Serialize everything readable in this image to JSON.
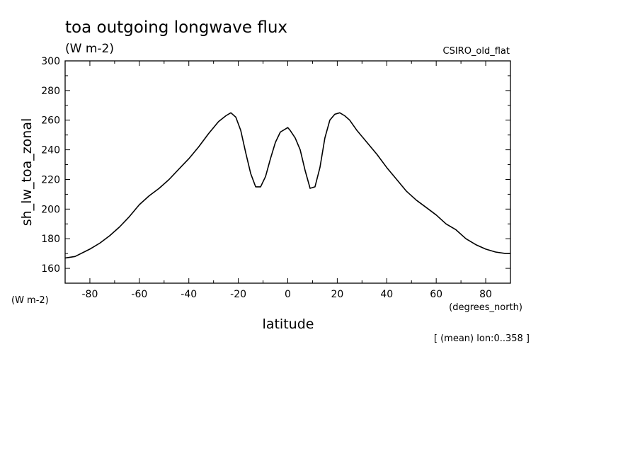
{
  "chart_data": {
    "type": "line",
    "title": "toa outgoing longwave flux",
    "units": "(W m-2)",
    "source": "CSIRO_old_flat",
    "ylabel": "sh_lw_toa_zonal",
    "yunits": "(W m-2)",
    "xlabel": "latitude",
    "xunits": "(degrees_north)",
    "footnote": "[ (mean) lon:0..358 ]",
    "xlim": [
      -90,
      90
    ],
    "ylim": [
      150,
      300
    ],
    "xticks": [
      -80,
      -60,
      -40,
      -20,
      0,
      20,
      40,
      60,
      80
    ],
    "xtick_labels": [
      "-80",
      "-60",
      "-40",
      "-20",
      "0",
      "20",
      "40",
      "60",
      "80"
    ],
    "yticks": [
      160,
      180,
      200,
      220,
      240,
      260,
      280,
      300
    ],
    "ytick_labels": [
      "160",
      "180",
      "200",
      "220",
      "240",
      "260",
      "280",
      "300"
    ],
    "grid": false,
    "series": [
      {
        "x": [
          -90,
          -86,
          -80,
          -76,
          -72,
          -68,
          -64,
          -60,
          -56,
          -52,
          -48,
          -44,
          -40,
          -36,
          -32,
          -28,
          -25,
          -23,
          -21,
          -19,
          -17,
          -15,
          -13,
          -11,
          -9,
          -7,
          -5,
          -3,
          -1,
          0,
          1,
          3,
          5,
          7,
          9,
          11,
          13,
          15,
          17,
          19,
          21,
          23,
          25,
          28,
          32,
          36,
          40,
          44,
          48,
          52,
          56,
          60,
          64,
          68,
          72,
          76,
          80,
          84,
          88,
          90
        ],
        "y": [
          167,
          168,
          173,
          177,
          182,
          188,
          195,
          203,
          209,
          214,
          220,
          227,
          234,
          242,
          251,
          259,
          263,
          265,
          262,
          253,
          238,
          224,
          215,
          215,
          222,
          234,
          245,
          252,
          254,
          255,
          253,
          248,
          240,
          226,
          214,
          215,
          228,
          248,
          260,
          264,
          265,
          263,
          260,
          253,
          245,
          237,
          228,
          220,
          212,
          206,
          201,
          196,
          190,
          186,
          180,
          176,
          173,
          171,
          170,
          170
        ]
      }
    ]
  }
}
